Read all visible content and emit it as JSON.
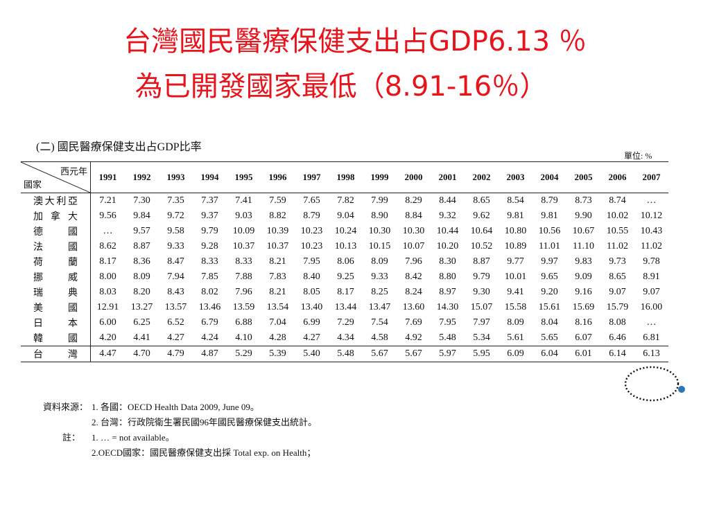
{
  "header": {
    "title_line1": "台灣國民醫療保健支出占GDP6.13 ％",
    "title_line2": "為已開發國家最低（8.91-16％）"
  },
  "table": {
    "caption": "(二) 國民醫療保健支出占GDP比率",
    "unit": "單位: %",
    "corner_top": "西元年",
    "corner_bottom": "國家",
    "years": [
      "1991",
      "1992",
      "1993",
      "1994",
      "1995",
      "1996",
      "1997",
      "1998",
      "1999",
      "2000",
      "2001",
      "2002",
      "2003",
      "2004",
      "2005",
      "2006",
      "2007"
    ],
    "rows": [
      [
        "澳大利亞",
        "7.21",
        "7.30",
        "7.35",
        "7.37",
        "7.41",
        "7.59",
        "7.65",
        "7.82",
        "7.99",
        "8.29",
        "8.44",
        "8.65",
        "8.54",
        "8.79",
        "8.73",
        "8.74",
        "…"
      ],
      [
        "加拿大",
        "9.56",
        "9.84",
        "9.72",
        "9.37",
        "9.03",
        "8.82",
        "8.79",
        "9.04",
        "8.90",
        "8.84",
        "9.32",
        "9.62",
        "9.81",
        "9.81",
        "9.90",
        "10.02",
        "10.12"
      ],
      [
        "德國",
        "…",
        "9.57",
        "9.58",
        "9.79",
        "10.09",
        "10.39",
        "10.23",
        "10.24",
        "10.30",
        "10.30",
        "10.44",
        "10.64",
        "10.80",
        "10.56",
        "10.67",
        "10.55",
        "10.43"
      ],
      [
        "法國",
        "8.62",
        "8.87",
        "9.33",
        "9.28",
        "10.37",
        "10.37",
        "10.23",
        "10.13",
        "10.15",
        "10.07",
        "10.20",
        "10.52",
        "10.89",
        "11.01",
        "11.10",
        "11.02",
        "11.02"
      ],
      [
        "荷蘭",
        "8.17",
        "8.36",
        "8.47",
        "8.33",
        "8.33",
        "8.21",
        "7.95",
        "8.06",
        "8.09",
        "7.96",
        "8.30",
        "8.87",
        "9.77",
        "9.97",
        "9.83",
        "9.73",
        "9.78"
      ],
      [
        "挪威",
        "8.00",
        "8.09",
        "7.94",
        "7.85",
        "7.88",
        "7.83",
        "8.40",
        "9.25",
        "9.33",
        "8.42",
        "8.80",
        "9.79",
        "10.01",
        "9.65",
        "9.09",
        "8.65",
        "8.91"
      ],
      [
        "瑞典",
        "8.03",
        "8.20",
        "8.43",
        "8.02",
        "7.96",
        "8.21",
        "8.05",
        "8.17",
        "8.25",
        "8.24",
        "8.97",
        "9.30",
        "9.41",
        "9.20",
        "9.16",
        "9.07",
        "9.07"
      ],
      [
        "美國",
        "12.91",
        "13.27",
        "13.57",
        "13.46",
        "13.59",
        "13.54",
        "13.40",
        "13.44",
        "13.47",
        "13.60",
        "14.30",
        "15.07",
        "15.58",
        "15.61",
        "15.69",
        "15.79",
        "16.00"
      ],
      [
        "日本",
        "6.00",
        "6.25",
        "6.52",
        "6.79",
        "6.88",
        "7.04",
        "6.99",
        "7.29",
        "7.54",
        "7.69",
        "7.95",
        "7.97",
        "8.09",
        "8.04",
        "8.16",
        "8.08",
        "…"
      ],
      [
        "韓國",
        "4.20",
        "4.41",
        "4.27",
        "4.24",
        "4.10",
        "4.28",
        "4.27",
        "4.34",
        "4.58",
        "4.92",
        "5.48",
        "5.34",
        "5.61",
        "5.65",
        "6.07",
        "6.46",
        "6.81"
      ],
      [
        "台灣",
        "4.47",
        "4.70",
        "4.79",
        "4.87",
        "5.29",
        "5.39",
        "5.40",
        "5.48",
        "5.67",
        "5.67",
        "5.97",
        "5.95",
        "6.09",
        "6.04",
        "6.01",
        "6.14",
        "6.13"
      ]
    ]
  },
  "notes": {
    "source_label": "資料來源：",
    "sources": [
      "1. 各國：OECD Health Data 2009,  June 09。",
      "2. 台灣：行政院衛生署民國96年國民醫療保健支出統計。"
    ],
    "note_label": "註：",
    "notes": [
      "1. … = not available。",
      "2.OECD國家：國民醫療保健支出採 Total exp. on Health；"
    ]
  }
}
